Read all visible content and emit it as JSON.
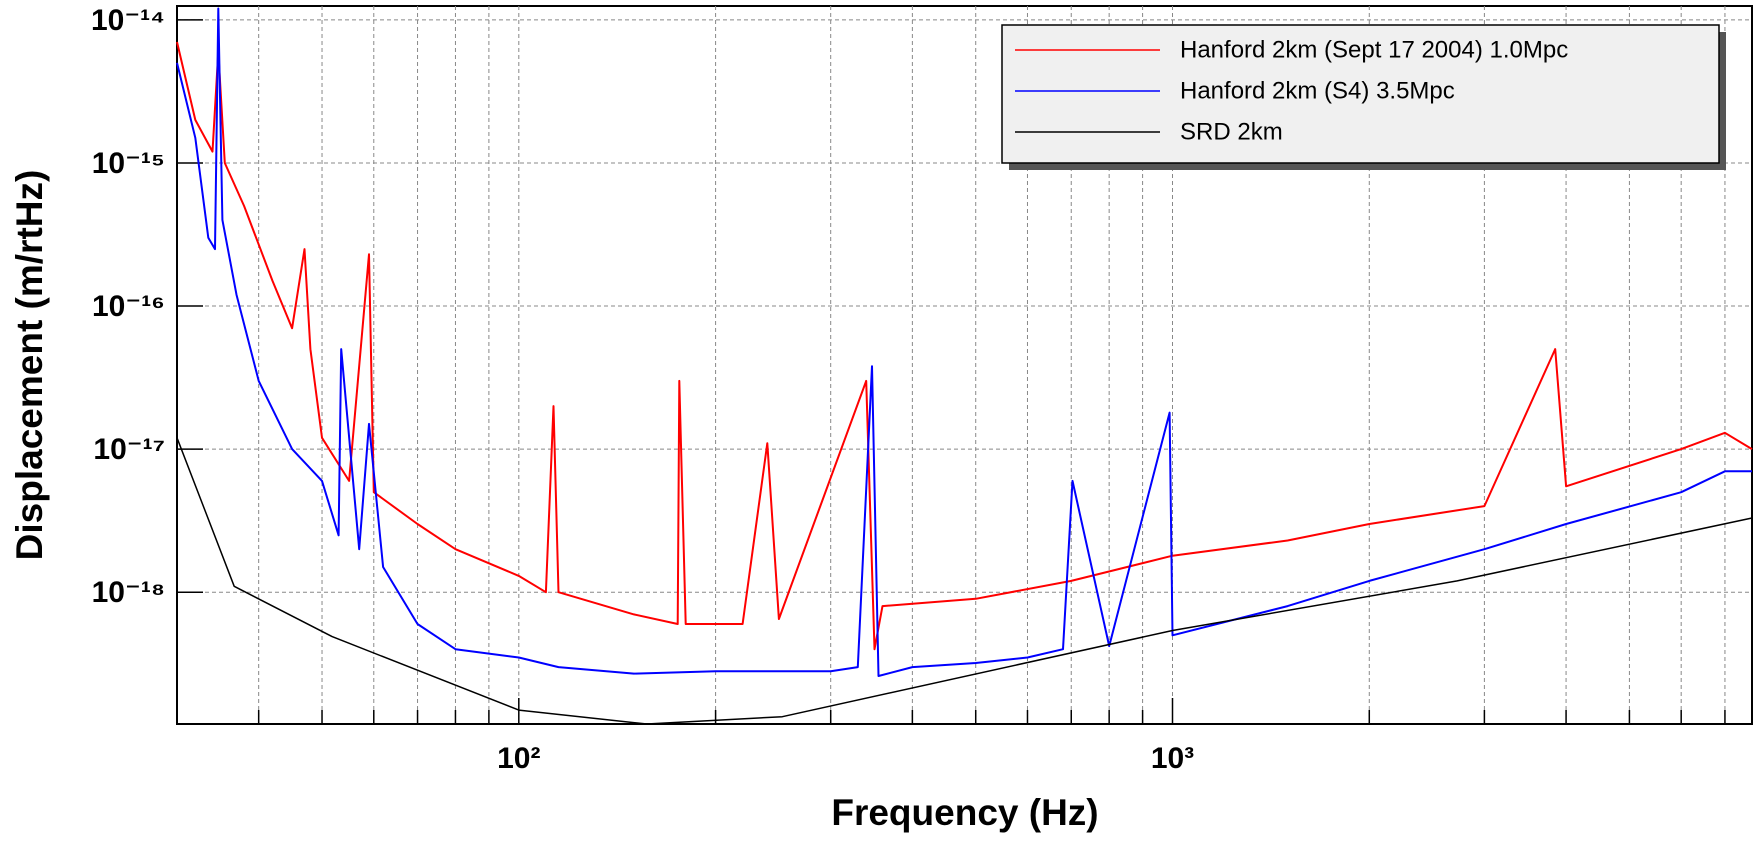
{
  "chart_data": {
    "type": "line",
    "xlabel": "Frequency (Hz)",
    "ylabel": "Displacement (m/rtHz)",
    "xscale": "log",
    "yscale": "log",
    "grid": true,
    "legend": "upper right",
    "xlim": [
      30,
      7700
    ],
    "ylim": [
      1.2e-19,
      1.25e-14
    ],
    "xticks": [
      {
        "value": 100,
        "label": "10²"
      },
      {
        "value": 1000,
        "label": "10³"
      }
    ],
    "xminor_ticks": [
      40,
      50,
      60,
      70,
      80,
      90,
      200,
      300,
      400,
      500,
      600,
      700,
      800,
      900,
      2000,
      3000,
      4000,
      5000,
      6000,
      7000
    ],
    "yticks": [
      {
        "value": 1e-14,
        "label": "10⁻¹⁴"
      },
      {
        "value": 1e-15,
        "label": "10⁻¹⁵"
      },
      {
        "value": 1e-16,
        "label": "10⁻¹⁶"
      },
      {
        "value": 1e-17,
        "label": "10⁻¹⁷"
      },
      {
        "value": 1e-18,
        "label": "10⁻¹⁸"
      }
    ],
    "series": [
      {
        "name": "Hanford 2km (Sept 17 2004) 1.0Mpc",
        "color": "#ff0000",
        "x": [
          30,
          32,
          34,
          34.7,
          35.5,
          38,
          42,
          45,
          47,
          48,
          50,
          55,
          59,
          60,
          70,
          80,
          100,
          110,
          113,
          115,
          150,
          175,
          176,
          180,
          220,
          240,
          250,
          340,
          350,
          360,
          500,
          700,
          1000,
          1500,
          2000,
          3000,
          3850,
          4000,
          6000,
          7000,
          7700
        ],
        "values": [
          7e-15,
          2e-15,
          1.2e-15,
          6e-15,
          1e-15,
          5e-16,
          1.5e-16,
          7e-17,
          2.5e-16,
          5e-17,
          1.2e-17,
          6e-18,
          2.3e-16,
          5e-18,
          3e-18,
          2e-18,
          1.3e-18,
          1e-18,
          2e-17,
          1e-18,
          7e-19,
          6e-19,
          3e-17,
          6e-19,
          6e-19,
          1.1e-17,
          6.5e-19,
          3e-17,
          4e-19,
          8e-19,
          9e-19,
          1.2e-18,
          1.8e-18,
          2.3e-18,
          3e-18,
          4e-18,
          5e-17,
          5.5e-18,
          1e-17,
          1.3e-17,
          1e-17
        ]
      },
      {
        "name": "Hanford 2km (S4) 3.5Mpc",
        "color": "#0000ff",
        "x": [
          30,
          32,
          33.5,
          34.3,
          34.7,
          35.2,
          37,
          40,
          45,
          50,
          53,
          53.5,
          57,
          59,
          62,
          70,
          80,
          100,
          115,
          150,
          200,
          250,
          300,
          330,
          347,
          355,
          400,
          500,
          600,
          680,
          703,
          800,
          990,
          1000,
          1500,
          2000,
          3000,
          4000,
          6000,
          7000,
          7700
        ],
        "values": [
          5e-15,
          1.5e-15,
          3e-16,
          2.5e-16,
          1.2e-14,
          4e-16,
          1.2e-16,
          3e-17,
          1e-17,
          6e-18,
          2.5e-18,
          5e-17,
          2e-18,
          1.5e-17,
          1.5e-18,
          6e-19,
          4e-19,
          3.5e-19,
          3e-19,
          2.7e-19,
          2.8e-19,
          2.8e-19,
          2.8e-19,
          3e-19,
          3.8e-17,
          2.6e-19,
          3e-19,
          3.2e-19,
          3.5e-19,
          4e-19,
          6e-18,
          4.2e-19,
          1.8e-17,
          5e-19,
          8e-19,
          1.2e-18,
          2e-18,
          3e-18,
          5e-18,
          7e-18,
          7e-18
        ]
      },
      {
        "name": "SRD 2km",
        "color": "#000000",
        "x": [
          30,
          36.7,
          51.8,
          100,
          157,
          253,
          1000,
          2726,
          7700
        ],
        "values": [
          1.2e-17,
          1.1e-18,
          4.9e-19,
          1.5e-19,
          1.2e-19,
          1.35e-19,
          5.4e-19,
          1.2e-18,
          3.3e-18
        ]
      }
    ]
  }
}
